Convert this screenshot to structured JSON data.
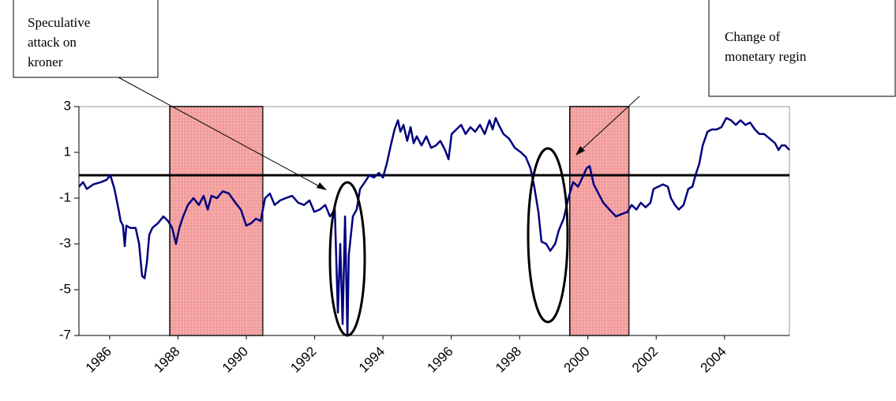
{
  "chart_data": {
    "type": "line",
    "xlim": [
      1985.1,
      2005.9
    ],
    "xticks": [
      1986,
      1988,
      1990,
      1992,
      1994,
      1996,
      1998,
      2000,
      2002,
      2004
    ],
    "ylim": [
      -7,
      3
    ],
    "yticks": [
      3,
      1,
      -1,
      -3,
      -5,
      -7
    ],
    "reference_line": 0,
    "highlight_periods": [
      [
        1987.76,
        1990.48
      ],
      [
        1999.47,
        2001.2
      ]
    ],
    "highlight_color": "#f29a9a",
    "series": [
      {
        "color": "#000080",
        "x": [
          1985.1,
          1985.22,
          1985.33,
          1985.52,
          1985.75,
          1985.91,
          1986.02,
          1986.14,
          1986.26,
          1986.32,
          1986.39,
          1986.44,
          1986.49,
          1986.6,
          1986.76,
          1986.86,
          1986.95,
          1987.02,
          1987.09,
          1987.16,
          1987.25,
          1987.41,
          1987.57,
          1987.71,
          1987.83,
          1987.94,
          1988.04,
          1988.15,
          1988.29,
          1988.45,
          1988.61,
          1988.75,
          1988.87,
          1988.98,
          1989.14,
          1989.31,
          1989.49,
          1989.68,
          1989.84,
          1990.0,
          1990.14,
          1990.28,
          1990.42,
          1990.55,
          1990.69,
          1990.83,
          1990.99,
          1991.15,
          1991.34,
          1991.52,
          1991.69,
          1991.85,
          1991.99,
          1992.15,
          1992.31,
          1992.45,
          1992.59,
          1992.68,
          1992.75,
          1992.82,
          1992.89,
          1992.96,
          1993.0,
          1993.12,
          1993.23,
          1993.33,
          1993.47,
          1993.6,
          1993.74,
          1993.88,
          1994.0,
          1994.11,
          1994.23,
          1994.34,
          1994.44,
          1994.51,
          1994.6,
          1994.71,
          1994.81,
          1994.9,
          1994.99,
          1995.13,
          1995.27,
          1995.41,
          1995.55,
          1995.68,
          1995.82,
          1995.92,
          1996.01,
          1996.15,
          1996.29,
          1996.42,
          1996.56,
          1996.7,
          1996.84,
          1996.98,
          1997.12,
          1997.21,
          1997.3,
          1997.39,
          1997.53,
          1997.69,
          1997.86,
          1998.04,
          1998.18,
          1998.32,
          1998.43,
          1998.55,
          1998.64,
          1998.78,
          1998.9,
          1999.04,
          1999.15,
          1999.29,
          1999.43,
          1999.57,
          1999.71,
          1999.84,
          1999.96,
          2000.05,
          2000.17,
          2000.31,
          2000.45,
          2000.63,
          2000.82,
          2000.98,
          2001.16,
          2001.28,
          2001.42,
          2001.55,
          2001.69,
          2001.83,
          2001.92,
          2002.06,
          2002.2,
          2002.34,
          2002.43,
          2002.55,
          2002.66,
          2002.8,
          2002.94,
          2003.06,
          2003.17,
          2003.26,
          2003.36,
          2003.5,
          2003.63,
          2003.77,
          2003.91,
          2004.05,
          2004.19,
          2004.33,
          2004.47,
          2004.61,
          2004.75,
          2004.89,
          2005.02,
          2005.16,
          2005.32,
          2005.48,
          2005.58,
          2005.67,
          2005.78,
          2005.9
        ],
        "values": [
          -0.5,
          -0.3,
          -0.6,
          -0.4,
          -0.3,
          -0.2,
          0,
          -0.6,
          -1.5,
          -2.0,
          -2.2,
          -3.1,
          -2.2,
          -2.3,
          -2.3,
          -3.0,
          -4.4,
          -4.5,
          -3.8,
          -2.6,
          -2.3,
          -2.1,
          -1.8,
          -2.0,
          -2.3,
          -3.0,
          -2.3,
          -1.8,
          -1.3,
          -1.0,
          -1.3,
          -0.9,
          -1.5,
          -0.9,
          -1.0,
          -0.7,
          -0.8,
          -1.2,
          -1.5,
          -2.2,
          -2.1,
          -1.9,
          -2.0,
          -1.0,
          -0.8,
          -1.3,
          -1.1,
          -1.0,
          -0.9,
          -1.2,
          -1.3,
          -1.1,
          -1.6,
          -1.5,
          -1.3,
          -1.8,
          -1.5,
          -6.0,
          -3.0,
          -6.5,
          -1.8,
          -7.0,
          -3.5,
          -1.8,
          -1.5,
          -0.6,
          -0.3,
          0.0,
          -0.1,
          0.1,
          -0.1,
          0.5,
          1.3,
          2.0,
          2.4,
          1.9,
          2.2,
          1.5,
          2.1,
          1.4,
          1.7,
          1.3,
          1.7,
          1.2,
          1.3,
          1.5,
          1.1,
          0.7,
          1.8,
          2.0,
          2.2,
          1.8,
          2.1,
          1.9,
          2.2,
          1.8,
          2.4,
          2.0,
          2.5,
          2.2,
          1.8,
          1.6,
          1.2,
          1.0,
          0.8,
          0.3,
          -0.5,
          -1.6,
          -2.9,
          -3.0,
          -3.3,
          -3.0,
          -2.4,
          -1.9,
          -1.0,
          -0.3,
          -0.5,
          -0.1,
          0.3,
          0.4,
          -0.4,
          -0.8,
          -1.2,
          -1.5,
          -1.8,
          -1.7,
          -1.6,
          -1.3,
          -1.5,
          -1.2,
          -1.4,
          -1.2,
          -0.6,
          -0.5,
          -0.4,
          -0.5,
          -1.0,
          -1.3,
          -1.5,
          -1.3,
          -0.6,
          -0.5,
          0.1,
          0.5,
          1.3,
          1.9,
          2.0,
          2.0,
          2.1,
          2.5,
          2.4,
          2.2,
          2.4,
          2.2,
          2.3,
          2.0,
          1.8,
          1.8,
          1.6,
          1.4,
          1.1,
          1.3,
          1.3,
          1.1
        ]
      }
    ],
    "annotations": [
      {
        "text_lines": [
          "Speculative",
          "attack on",
          "kroner"
        ]
      },
      {
        "text_lines": [
          "Change of",
          "monetary regin"
        ]
      }
    ]
  }
}
